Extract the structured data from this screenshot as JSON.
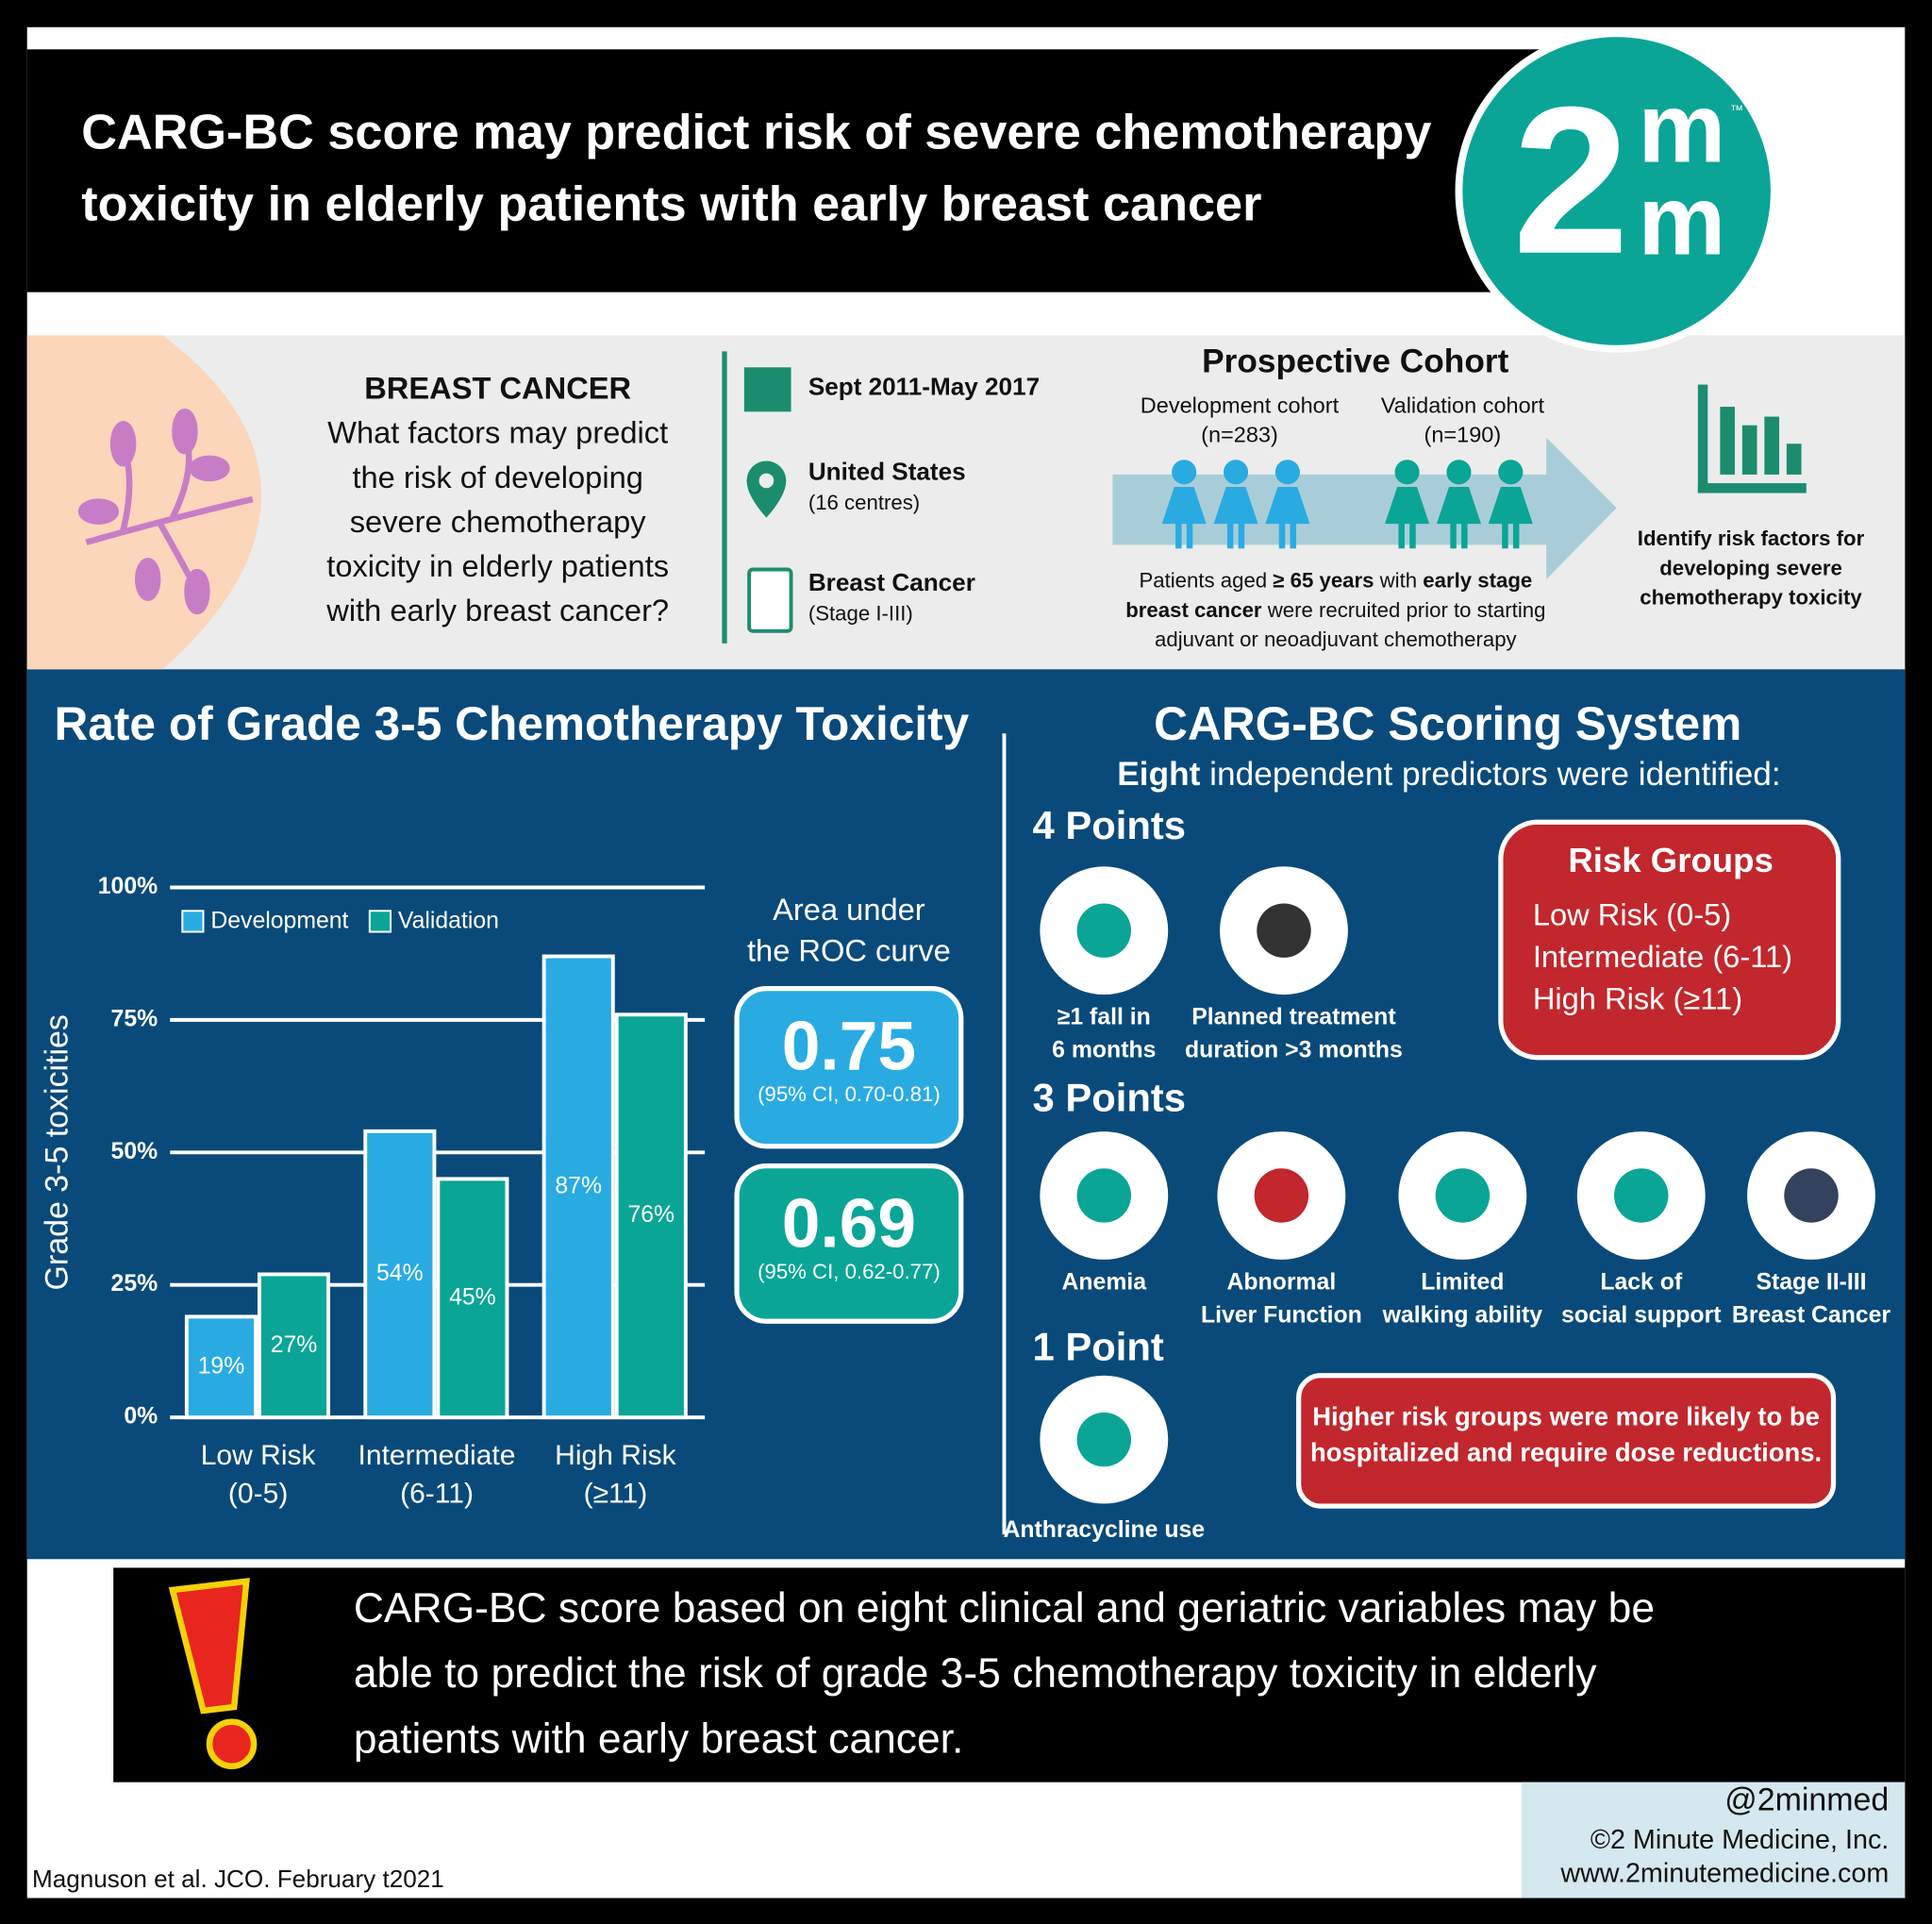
{
  "header": {
    "title_lines": [
      "CARG-BC score may predict risk of severe chemotherapy",
      "toxicity in elderly patients with early breast cancer"
    ],
    "logo": {
      "digit": "2",
      "top": "m",
      "bottom": "m",
      "tm": "™"
    }
  },
  "intro": {
    "heading": "BREAST CANCER",
    "question_lines": [
      "What factors may predict",
      "the risk of developing",
      "severe chemotherapy",
      "toxicity in elderly patients",
      "with early breast cancer?"
    ]
  },
  "details": [
    {
      "title": "Sept 2011-May 2017"
    },
    {
      "title": "United States",
      "sub": "(16 centres)"
    },
    {
      "title": "Breast Cancer",
      "sub": "(Stage I-III)"
    }
  ],
  "cohort": {
    "title": "Prospective Cohort",
    "groups": [
      {
        "name": "Development cohort",
        "n": "(n=283)"
      },
      {
        "name": "Validation cohort",
        "n": "(n=190)"
      }
    ],
    "description_lines": [
      [
        "Patients aged ",
        "≥ 65 years",
        " with ",
        "early stage"
      ],
      [
        "breast cancer",
        " were recruited prior to starting"
      ],
      [
        "adjuvant or neoadjuvant chemotherapy"
      ]
    ]
  },
  "aim_lines": [
    "Identify risk factors for",
    "developing severe",
    "chemotherapy toxicity"
  ],
  "chart_data": {
    "type": "bar",
    "title": "Rate of Grade 3-5 Chemotherapy Toxicity",
    "y_label": "Grade 3-5 toxicities",
    "categories": [
      "Low Risk (0-5)",
      "Intermediate (6-11)",
      "High Risk (≥11)"
    ],
    "series": [
      {
        "name": "Development",
        "color": "#29abe2",
        "values": [
          19,
          54,
          87
        ],
        "value_labels": [
          "19%",
          "54%",
          "87%"
        ]
      },
      {
        "name": "Validation",
        "color": "#0aa596",
        "values": [
          27,
          45,
          76
        ],
        "value_labels": [
          "27%",
          "45%",
          "76%"
        ]
      }
    ],
    "ylim": [
      0,
      100
    ],
    "yticks": [
      {
        "value": 0,
        "label": "0%"
      },
      {
        "value": 25,
        "label": "25%"
      },
      {
        "value": 50,
        "label": "50%"
      },
      {
        "value": 75,
        "label": "75%"
      },
      {
        "value": 100,
        "label": "100%"
      }
    ],
    "grid": true,
    "legend": "top-left"
  },
  "auc": {
    "title_lines": [
      "Area under",
      "the ROC curve"
    ],
    "values": [
      {
        "value": 0.75,
        "ci": "(95% CI, 0.70-0.81)"
      },
      {
        "value": 0.69,
        "ci": "(95% CI,  0.62-0.77)"
      }
    ]
  },
  "scoring": {
    "title": "CARG-BC Scoring System",
    "subtitle": [
      "Eight",
      " independent predictors were identified:"
    ],
    "groups": [
      {
        "label": "4 Points",
        "items": [
          [
            "≥1 fall in",
            "6 months"
          ],
          [
            "Planned treatment",
            "duration >3 months"
          ]
        ]
      },
      {
        "label": "3 Points",
        "items": [
          [
            "Anemia"
          ],
          [
            "Abnormal",
            "Liver Function"
          ],
          [
            "Limited",
            "walking ability"
          ],
          [
            "Lack of",
            "social support"
          ],
          [
            "Stage II-III",
            "Breast Cancer"
          ]
        ]
      },
      {
        "label": "1 Point",
        "items": [
          [
            "Anthracycline use"
          ]
        ]
      }
    ]
  },
  "risk_groups": {
    "title": "Risk Groups",
    "items": [
      "Low Risk (0-5)",
      "Intermediate (6-11)",
      "High Risk (≥11)"
    ]
  },
  "note_lines": [
    "Higher risk groups were more likely to be",
    "hospitalized and require dose reductions."
  ],
  "conclusion_lines": [
    "CARG-BC score based on eight clinical and geriatric variables may be",
    "able to predict the risk of grade 3-5 chemotherapy toxicity in elderly",
    "patients with early breast cancer."
  ],
  "footer": {
    "citation": "Magnuson et al. JCO. February t2021",
    "credits": [
      "@2minmed",
      "©2 Minute Medicine, Inc.",
      "www.2minutemedicine.com"
    ]
  }
}
